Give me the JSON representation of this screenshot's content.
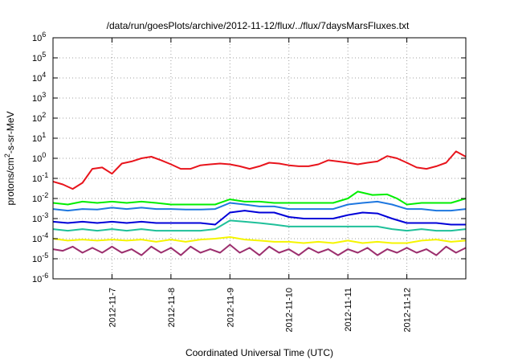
{
  "chart_data": {
    "type": "line",
    "title": "/data/run/goesPlots/archive/2012-11-12/flux/../flux/7daysMarsFluxes.txt",
    "xlabel": "Coordinated Universal Time (UTC)",
    "ylabel": "protons/cm²-s-sr-MeV",
    "ylabel_parts": {
      "base": "protons/cm",
      "sup": "2",
      "rest": "-s-sr-MeV"
    },
    "y_scale": "log",
    "ylim": [
      1e-06,
      1000000.0
    ],
    "y_ticks": [
      {
        "exp": -6,
        "base": "10",
        "sup": "-6"
      },
      {
        "exp": -5,
        "base": "10",
        "sup": "-5"
      },
      {
        "exp": -4,
        "base": "10",
        "sup": "-4"
      },
      {
        "exp": -3,
        "base": "10",
        "sup": "-3"
      },
      {
        "exp": -2,
        "base": "10",
        "sup": "-2"
      },
      {
        "exp": -1,
        "base": "10",
        "sup": "-1"
      },
      {
        "exp": 0,
        "base": "10",
        "sup": "0"
      },
      {
        "exp": 1,
        "base": "10",
        "sup": "1"
      },
      {
        "exp": 2,
        "base": "10",
        "sup": "2"
      },
      {
        "exp": 3,
        "base": "10",
        "sup": "3"
      },
      {
        "exp": 4,
        "base": "10",
        "sup": "4"
      },
      {
        "exp": 5,
        "base": "10",
        "sup": "5"
      },
      {
        "exp": 6,
        "base": "10",
        "sup": "6"
      }
    ],
    "xlim": [
      "2012-11-06T00:00",
      "2012-11-13T00:00"
    ],
    "x_ticks": [
      "2012-11-7",
      "2012-11-8",
      "2012-11-9",
      "2012-11-10",
      "2012-11-11",
      "2012-11-12"
    ],
    "grid": true,
    "series": [
      {
        "color": "#e8141c",
        "points": [
          [
            "2012-11-06T00:00",
            0.07
          ],
          [
            "2012-11-06T04:00",
            0.05
          ],
          [
            "2012-11-06T08:00",
            0.03
          ],
          [
            "2012-11-06T12:00",
            0.06
          ],
          [
            "2012-11-06T16:00",
            0.3
          ],
          [
            "2012-11-06T20:00",
            0.35
          ],
          [
            "2012-11-07T00:00",
            0.17
          ],
          [
            "2012-11-07T04:00",
            0.55
          ],
          [
            "2012-11-07T08:00",
            0.7
          ],
          [
            "2012-11-07T12:00",
            1.0
          ],
          [
            "2012-11-07T16:00",
            1.2
          ],
          [
            "2012-11-07T20:00",
            0.8
          ],
          [
            "2012-11-08T00:00",
            0.5
          ],
          [
            "2012-11-08T04:00",
            0.3
          ],
          [
            "2012-11-08T08:00",
            0.3
          ],
          [
            "2012-11-08T12:00",
            0.45
          ],
          [
            "2012-11-08T16:00",
            0.5
          ],
          [
            "2012-11-08T20:00",
            0.55
          ],
          [
            "2012-11-09T00:00",
            0.5
          ],
          [
            "2012-11-09T04:00",
            0.4
          ],
          [
            "2012-11-09T08:00",
            0.3
          ],
          [
            "2012-11-09T12:00",
            0.4
          ],
          [
            "2012-11-09T16:00",
            0.6
          ],
          [
            "2012-11-09T20:00",
            0.55
          ],
          [
            "2012-11-10T00:00",
            0.45
          ],
          [
            "2012-11-10T04:00",
            0.4
          ],
          [
            "2012-11-10T08:00",
            0.4
          ],
          [
            "2012-11-10T12:00",
            0.5
          ],
          [
            "2012-11-10T16:00",
            0.8
          ],
          [
            "2012-11-10T20:00",
            0.7
          ],
          [
            "2012-11-11T00:00",
            0.6
          ],
          [
            "2012-11-11T04:00",
            0.5
          ],
          [
            "2012-11-11T08:00",
            0.6
          ],
          [
            "2012-11-11T12:00",
            0.7
          ],
          [
            "2012-11-11T16:00",
            1.3
          ],
          [
            "2012-11-11T20:00",
            1.0
          ],
          [
            "2012-11-12T00:00",
            0.6
          ],
          [
            "2012-11-12T04:00",
            0.35
          ],
          [
            "2012-11-12T08:00",
            0.3
          ],
          [
            "2012-11-12T12:00",
            0.4
          ],
          [
            "2012-11-12T16:00",
            0.6
          ],
          [
            "2012-11-12T20:00",
            2.2
          ],
          [
            "2012-11-13T00:00",
            1.2
          ]
        ]
      },
      {
        "color": "#00ee00",
        "points": [
          [
            "2012-11-06T00:00",
            0.006
          ],
          [
            "2012-11-06T06:00",
            0.005
          ],
          [
            "2012-11-06T12:00",
            0.007
          ],
          [
            "2012-11-06T18:00",
            0.006
          ],
          [
            "2012-11-07T00:00",
            0.007
          ],
          [
            "2012-11-07T06:00",
            0.006
          ],
          [
            "2012-11-07T12:00",
            0.007
          ],
          [
            "2012-11-07T18:00",
            0.006
          ],
          [
            "2012-11-08T00:00",
            0.005
          ],
          [
            "2012-11-08T06:00",
            0.005
          ],
          [
            "2012-11-08T12:00",
            0.005
          ],
          [
            "2012-11-08T18:00",
            0.005
          ],
          [
            "2012-11-09T00:00",
            0.009
          ],
          [
            "2012-11-09T06:00",
            0.007
          ],
          [
            "2012-11-09T12:00",
            0.007
          ],
          [
            "2012-11-09T18:00",
            0.006
          ],
          [
            "2012-11-10T00:00",
            0.006
          ],
          [
            "2012-11-10T06:00",
            0.006
          ],
          [
            "2012-11-10T12:00",
            0.006
          ],
          [
            "2012-11-10T18:00",
            0.006
          ],
          [
            "2012-11-11T00:00",
            0.01
          ],
          [
            "2012-11-11T04:00",
            0.022
          ],
          [
            "2012-11-11T10:00",
            0.015
          ],
          [
            "2012-11-11T16:00",
            0.016
          ],
          [
            "2012-11-11T20:00",
            0.01
          ],
          [
            "2012-11-12T00:00",
            0.005
          ],
          [
            "2012-11-12T06:00",
            0.006
          ],
          [
            "2012-11-12T12:00",
            0.006
          ],
          [
            "2012-11-12T18:00",
            0.006
          ],
          [
            "2012-11-13T00:00",
            0.01
          ]
        ]
      },
      {
        "color": "#1f78e0",
        "points": [
          [
            "2012-11-06T00:00",
            0.003
          ],
          [
            "2012-11-06T06:00",
            0.0025
          ],
          [
            "2012-11-06T12:00",
            0.003
          ],
          [
            "2012-11-06T18:00",
            0.0028
          ],
          [
            "2012-11-07T00:00",
            0.0035
          ],
          [
            "2012-11-07T06:00",
            0.003
          ],
          [
            "2012-11-07T12:00",
            0.0035
          ],
          [
            "2012-11-07T18:00",
            0.003
          ],
          [
            "2012-11-08T00:00",
            0.003
          ],
          [
            "2012-11-08T06:00",
            0.0028
          ],
          [
            "2012-11-08T12:00",
            0.0028
          ],
          [
            "2012-11-08T18:00",
            0.003
          ],
          [
            "2012-11-09T00:00",
            0.006
          ],
          [
            "2012-11-09T06:00",
            0.005
          ],
          [
            "2012-11-09T12:00",
            0.004
          ],
          [
            "2012-11-09T18:00",
            0.004
          ],
          [
            "2012-11-10T00:00",
            0.003
          ],
          [
            "2012-11-10T06:00",
            0.003
          ],
          [
            "2012-11-10T12:00",
            0.003
          ],
          [
            "2012-11-10T18:00",
            0.003
          ],
          [
            "2012-11-11T00:00",
            0.005
          ],
          [
            "2012-11-11T06:00",
            0.006
          ],
          [
            "2012-11-11T12:00",
            0.007
          ],
          [
            "2012-11-11T18:00",
            0.005
          ],
          [
            "2012-11-12T00:00",
            0.003
          ],
          [
            "2012-11-12T06:00",
            0.003
          ],
          [
            "2012-11-12T12:00",
            0.0025
          ],
          [
            "2012-11-12T18:00",
            0.0025
          ],
          [
            "2012-11-13T00:00",
            0.003
          ]
        ]
      },
      {
        "color": "#0000d8",
        "points": [
          [
            "2012-11-06T00:00",
            0.0007
          ],
          [
            "2012-11-06T06:00",
            0.0006
          ],
          [
            "2012-11-06T12:00",
            0.0007
          ],
          [
            "2012-11-06T18:00",
            0.0006
          ],
          [
            "2012-11-07T00:00",
            0.0007
          ],
          [
            "2012-11-07T06:00",
            0.0006
          ],
          [
            "2012-11-07T12:00",
            0.0007
          ],
          [
            "2012-11-07T18:00",
            0.0006
          ],
          [
            "2012-11-08T00:00",
            0.0006
          ],
          [
            "2012-11-08T06:00",
            0.0006
          ],
          [
            "2012-11-08T12:00",
            0.0006
          ],
          [
            "2012-11-08T18:00",
            0.0005
          ],
          [
            "2012-11-09T00:00",
            0.002
          ],
          [
            "2012-11-09T06:00",
            0.0025
          ],
          [
            "2012-11-09T12:00",
            0.002
          ],
          [
            "2012-11-09T18:00",
            0.002
          ],
          [
            "2012-11-10T00:00",
            0.0012
          ],
          [
            "2012-11-10T06:00",
            0.001
          ],
          [
            "2012-11-10T12:00",
            0.001
          ],
          [
            "2012-11-10T18:00",
            0.001
          ],
          [
            "2012-11-11T00:00",
            0.0015
          ],
          [
            "2012-11-11T06:00",
            0.002
          ],
          [
            "2012-11-11T12:00",
            0.0018
          ],
          [
            "2012-11-11T18:00",
            0.001
          ],
          [
            "2012-11-12T00:00",
            0.0006
          ],
          [
            "2012-11-12T06:00",
            0.0006
          ],
          [
            "2012-11-12T12:00",
            0.0006
          ],
          [
            "2012-11-12T18:00",
            0.0005
          ],
          [
            "2012-11-13T00:00",
            0.0005
          ]
        ]
      },
      {
        "color": "#1fc09a",
        "points": [
          [
            "2012-11-06T00:00",
            0.0003
          ],
          [
            "2012-11-06T06:00",
            0.00025
          ],
          [
            "2012-11-06T12:00",
            0.0003
          ],
          [
            "2012-11-06T18:00",
            0.00025
          ],
          [
            "2012-11-07T00:00",
            0.0003
          ],
          [
            "2012-11-07T06:00",
            0.00025
          ],
          [
            "2012-11-07T12:00",
            0.0003
          ],
          [
            "2012-11-07T18:00",
            0.00025
          ],
          [
            "2012-11-08T00:00",
            0.00025
          ],
          [
            "2012-11-08T06:00",
            0.00025
          ],
          [
            "2012-11-08T12:00",
            0.00025
          ],
          [
            "2012-11-08T18:00",
            0.0003
          ],
          [
            "2012-11-09T00:00",
            0.0008
          ],
          [
            "2012-11-09T06:00",
            0.0007
          ],
          [
            "2012-11-09T12:00",
            0.0006
          ],
          [
            "2012-11-09T18:00",
            0.0005
          ],
          [
            "2012-11-10T00:00",
            0.0004
          ],
          [
            "2012-11-10T06:00",
            0.0004
          ],
          [
            "2012-11-10T12:00",
            0.0004
          ],
          [
            "2012-11-10T18:00",
            0.0004
          ],
          [
            "2012-11-11T00:00",
            0.0004
          ],
          [
            "2012-11-11T06:00",
            0.0004
          ],
          [
            "2012-11-11T12:00",
            0.0004
          ],
          [
            "2012-11-11T18:00",
            0.0003
          ],
          [
            "2012-11-12T00:00",
            0.00025
          ],
          [
            "2012-11-12T06:00",
            0.0003
          ],
          [
            "2012-11-12T12:00",
            0.00025
          ],
          [
            "2012-11-12T18:00",
            0.00025
          ],
          [
            "2012-11-13T00:00",
            0.0003
          ]
        ]
      },
      {
        "color": "#f5f500",
        "points": [
          [
            "2012-11-06T00:00",
            0.0001
          ],
          [
            "2012-11-06T06:00",
            8e-05
          ],
          [
            "2012-11-06T12:00",
            9e-05
          ],
          [
            "2012-11-06T18:00",
            8e-05
          ],
          [
            "2012-11-07T00:00",
            9e-05
          ],
          [
            "2012-11-07T06:00",
            8e-05
          ],
          [
            "2012-11-07T12:00",
            9e-05
          ],
          [
            "2012-11-07T18:00",
            7e-05
          ],
          [
            "2012-11-08T00:00",
            9e-05
          ],
          [
            "2012-11-08T06:00",
            7e-05
          ],
          [
            "2012-11-08T12:00",
            9e-05
          ],
          [
            "2012-11-08T18:00",
            0.0001
          ],
          [
            "2012-11-09T00:00",
            0.00012
          ],
          [
            "2012-11-09T06:00",
            9e-05
          ],
          [
            "2012-11-09T12:00",
            8e-05
          ],
          [
            "2012-11-09T18:00",
            7e-05
          ],
          [
            "2012-11-10T00:00",
            7e-05
          ],
          [
            "2012-11-10T06:00",
            6e-05
          ],
          [
            "2012-11-10T12:00",
            7e-05
          ],
          [
            "2012-11-10T18:00",
            6e-05
          ],
          [
            "2012-11-11T00:00",
            8e-05
          ],
          [
            "2012-11-11T06:00",
            6e-05
          ],
          [
            "2012-11-11T12:00",
            7e-05
          ],
          [
            "2012-11-11T18:00",
            6e-05
          ],
          [
            "2012-11-12T00:00",
            6e-05
          ],
          [
            "2012-11-12T06:00",
            8e-05
          ],
          [
            "2012-11-12T12:00",
            9e-05
          ],
          [
            "2012-11-12T18:00",
            7e-05
          ],
          [
            "2012-11-13T00:00",
            8e-05
          ]
        ]
      },
      {
        "color": "#9c2f6e",
        "points": [
          [
            "2012-11-06T00:00",
            3e-05
          ],
          [
            "2012-11-06T04:00",
            2.5e-05
          ],
          [
            "2012-11-06T08:00",
            4e-05
          ],
          [
            "2012-11-06T12:00",
            2e-05
          ],
          [
            "2012-11-06T16:00",
            3.5e-05
          ],
          [
            "2012-11-06T20:00",
            2e-05
          ],
          [
            "2012-11-07T00:00",
            4e-05
          ],
          [
            "2012-11-07T04:00",
            2e-05
          ],
          [
            "2012-11-07T08:00",
            3e-05
          ],
          [
            "2012-11-07T12:00",
            1.5e-05
          ],
          [
            "2012-11-07T16:00",
            4e-05
          ],
          [
            "2012-11-07T20:00",
            2e-05
          ],
          [
            "2012-11-08T00:00",
            3.5e-05
          ],
          [
            "2012-11-08T04:00",
            1.5e-05
          ],
          [
            "2012-11-08T08:00",
            4e-05
          ],
          [
            "2012-11-08T12:00",
            2e-05
          ],
          [
            "2012-11-08T16:00",
            3e-05
          ],
          [
            "2012-11-08T20:00",
            2e-05
          ],
          [
            "2012-11-09T00:00",
            5e-05
          ],
          [
            "2012-11-09T04:00",
            2e-05
          ],
          [
            "2012-11-09T08:00",
            3.5e-05
          ],
          [
            "2012-11-09T12:00",
            1.5e-05
          ],
          [
            "2012-11-09T16:00",
            4e-05
          ],
          [
            "2012-11-09T20:00",
            2e-05
          ],
          [
            "2012-11-10T00:00",
            3e-05
          ],
          [
            "2012-11-10T04:00",
            1.5e-05
          ],
          [
            "2012-11-10T08:00",
            3.5e-05
          ],
          [
            "2012-11-10T12:00",
            2e-05
          ],
          [
            "2012-11-10T16:00",
            3e-05
          ],
          [
            "2012-11-10T20:00",
            1.5e-05
          ],
          [
            "2012-11-11T00:00",
            3e-05
          ],
          [
            "2012-11-11T04:00",
            2e-05
          ],
          [
            "2012-11-11T08:00",
            3.5e-05
          ],
          [
            "2012-11-11T12:00",
            1.5e-05
          ],
          [
            "2012-11-11T16:00",
            3e-05
          ],
          [
            "2012-11-11T20:00",
            2e-05
          ],
          [
            "2012-11-12T00:00",
            3.5e-05
          ],
          [
            "2012-11-12T04:00",
            2e-05
          ],
          [
            "2012-11-12T08:00",
            3e-05
          ],
          [
            "2012-11-12T12:00",
            1.5e-05
          ],
          [
            "2012-11-12T16:00",
            4e-05
          ],
          [
            "2012-11-12T20:00",
            2e-05
          ],
          [
            "2012-11-13T00:00",
            3.5e-05
          ]
        ]
      }
    ]
  }
}
